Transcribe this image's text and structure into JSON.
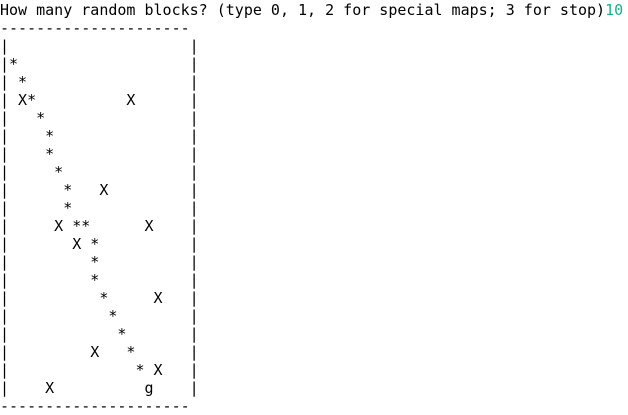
{
  "terminal": {
    "prompt": "How many random blocks? (type 0, 1, 2 for special maps; 3 for stop)",
    "input_value": "10",
    "map_lines": [
      "---------------------",
      "|                    |",
      "|*                   |",
      "| *                  |",
      "| X*          X      |",
      "|   *                |",
      "|    *               |",
      "|    *               |",
      "|     *              |",
      "|      *   X         |",
      "|      *             |",
      "|     X **      X    |",
      "|       X *          |",
      "|         *          |",
      "|         *          |",
      "|          *     X   |",
      "|           *        |",
      "|            *       |",
      "|         X   *      |",
      "|              * X   |",
      "|    X          g    |",
      "---------------------"
    ]
  },
  "colors": {
    "background": "#ffffff",
    "text": "#000000",
    "input": "#1fae8a"
  }
}
